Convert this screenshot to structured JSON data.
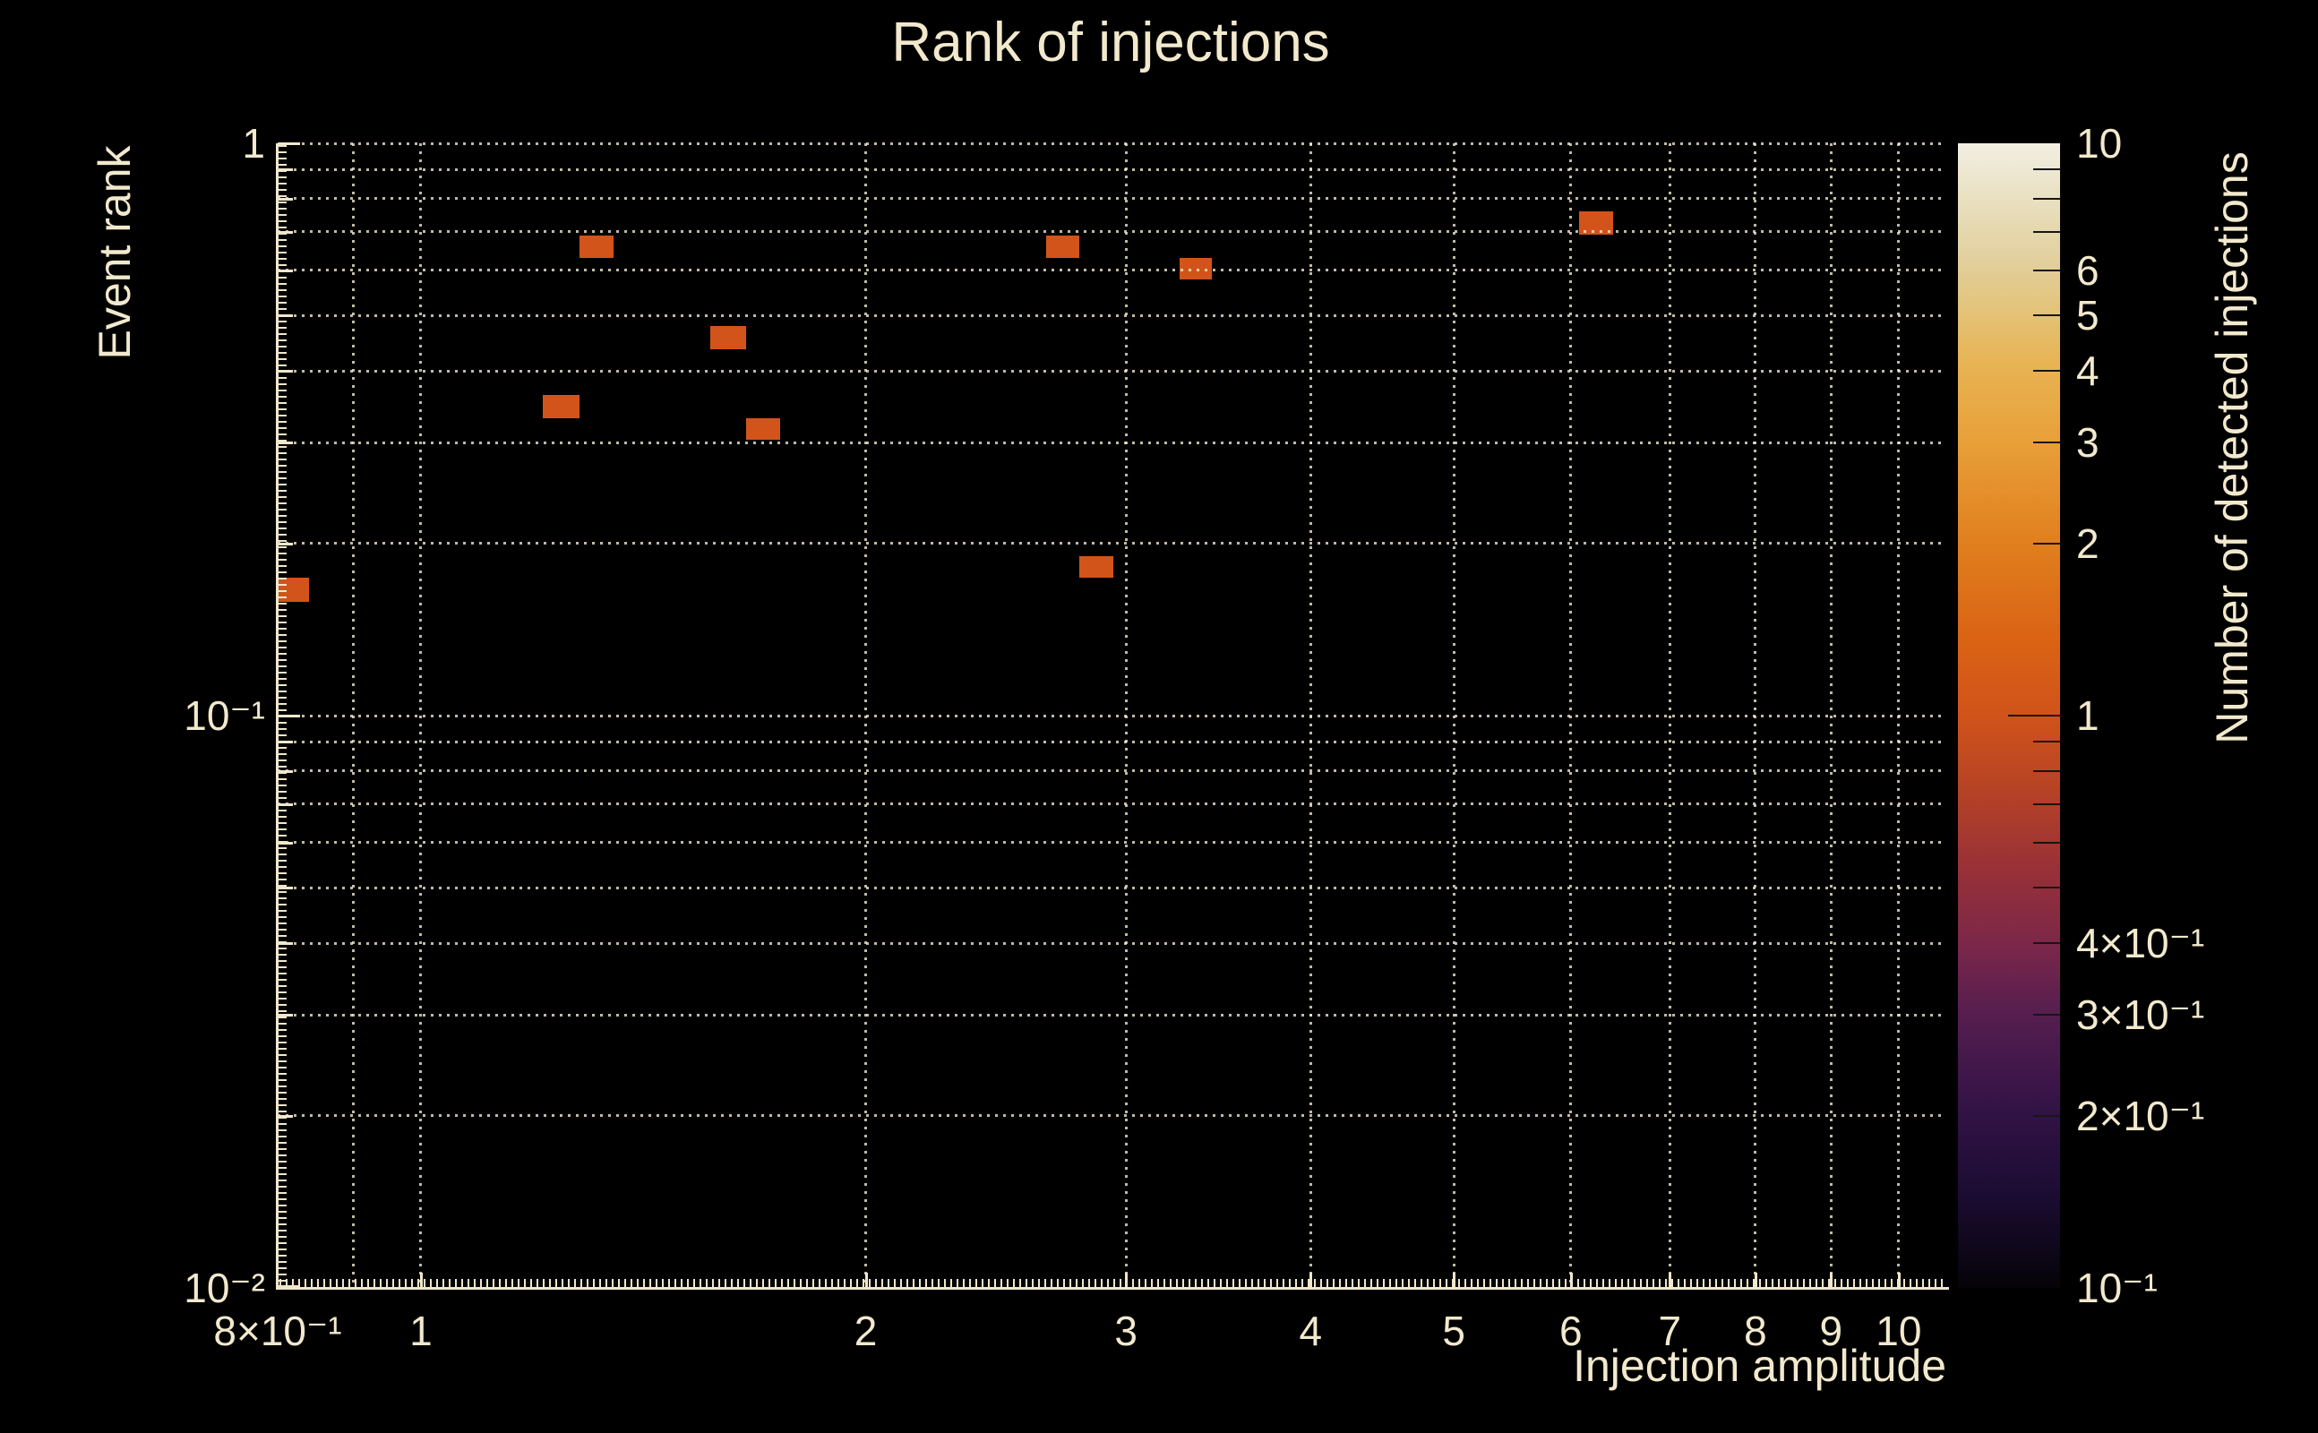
{
  "title": "Rank of injections",
  "colors": {
    "background": "#000000",
    "text": "#f2e9cd",
    "grid": "#f0e7cc",
    "spine": "#f0e7cc",
    "marker_count1": "#d2541a",
    "colorbar_tick": "#161616"
  },
  "chart_data": {
    "type": "heatmap",
    "title": "Rank of injections",
    "xlabel": "Injection amplitude",
    "ylabel": "Event rank",
    "colorbar_label": "Number of detected injections",
    "xscale": "log",
    "yscale": "log",
    "colorscale": "log",
    "xlim": [
      0.8,
      10.77
    ],
    "ylim": [
      0.01,
      1
    ],
    "colorlim": [
      0.1,
      10
    ],
    "grid": "dotted major+minor, both axes",
    "legend_position": "colorbar-right",
    "x_ticks": [
      {
        "value": 0.8,
        "label": "8×10⁻¹"
      },
      {
        "value": 1,
        "label": "1"
      },
      {
        "value": 2,
        "label": "2"
      },
      {
        "value": 3,
        "label": "3"
      },
      {
        "value": 4,
        "label": "4"
      },
      {
        "value": 5,
        "label": "5"
      },
      {
        "value": 6,
        "label": "6"
      },
      {
        "value": 7,
        "label": "7"
      },
      {
        "value": 8,
        "label": "8"
      },
      {
        "value": 9,
        "label": "9"
      },
      {
        "value": 10,
        "label": "10"
      }
    ],
    "x_minor_gridlines": [
      0.9,
      2,
      3,
      4,
      5,
      6,
      7,
      8,
      9
    ],
    "x_major_gridlines": [
      1,
      10
    ],
    "y_ticks": [
      {
        "value": 1,
        "label": "1"
      },
      {
        "value": 0.1,
        "label": "10⁻¹"
      },
      {
        "value": 0.01,
        "label": "10⁻²"
      }
    ],
    "y_minor_gridlines": [
      0.9,
      0.8,
      0.7,
      0.6,
      0.5,
      0.4,
      0.3,
      0.2,
      0.09,
      0.08,
      0.07,
      0.06,
      0.05,
      0.04,
      0.03,
      0.02
    ],
    "y_major_gridlines": [
      1,
      0.1
    ],
    "colorbar_ticks": [
      {
        "value": 10,
        "label": "10"
      },
      {
        "value": 6,
        "label": "6"
      },
      {
        "value": 5,
        "label": "5"
      },
      {
        "value": 4,
        "label": "4"
      },
      {
        "value": 3,
        "label": "3"
      },
      {
        "value": 2,
        "label": "2"
      },
      {
        "value": 1,
        "label": "1"
      },
      {
        "value": 0.4,
        "label": "4×10⁻¹"
      },
      {
        "value": 0.3,
        "label": "3×10⁻¹"
      },
      {
        "value": 0.2,
        "label": "2×10⁻¹"
      },
      {
        "value": 0.1,
        "label": "10⁻¹"
      }
    ],
    "colorbar_minor_ticks": [
      9,
      8,
      7,
      0.9,
      0.8,
      0.7,
      0.6,
      0.5
    ],
    "colormap": "inferno-like (black-purple-red-orange-cream)",
    "gradient_stops": [
      {
        "pos": 0.0,
        "color": "#050308"
      },
      {
        "pos": 0.08,
        "color": "#1b0c32"
      },
      {
        "pos": 0.16,
        "color": "#341347"
      },
      {
        "pos": 0.24,
        "color": "#561e4f"
      },
      {
        "pos": 0.3,
        "color": "#7b2749"
      },
      {
        "pos": 0.37,
        "color": "#9a3136"
      },
      {
        "pos": 0.44,
        "color": "#b84424"
      },
      {
        "pos": 0.5,
        "color": "#d0531a"
      },
      {
        "pos": 0.57,
        "color": "#da6414"
      },
      {
        "pos": 0.65,
        "color": "#e07f1e"
      },
      {
        "pos": 0.74,
        "color": "#e8a039"
      },
      {
        "pos": 0.81,
        "color": "#e7b455"
      },
      {
        "pos": 0.86,
        "color": "#e3c57e"
      },
      {
        "pos": 0.9,
        "color": "#e2d09f"
      },
      {
        "pos": 0.95,
        "color": "#e9e0c0"
      },
      {
        "pos": 1.0,
        "color": "#f2efe3"
      }
    ],
    "bins": [
      {
        "x": [
          0.8,
          0.84
        ],
        "y": [
          0.158,
          0.174
        ],
        "count": 1
      },
      {
        "x": [
          1.21,
          1.28
        ],
        "y": [
          0.331,
          0.363
        ],
        "count": 1
      },
      {
        "x": [
          1.28,
          1.35
        ],
        "y": [
          0.631,
          0.69
        ],
        "count": 1
      },
      {
        "x": [
          1.57,
          1.66
        ],
        "y": [
          0.437,
          0.479
        ],
        "count": 1
      },
      {
        "x": [
          1.66,
          1.75
        ],
        "y": [
          0.303,
          0.331
        ],
        "count": 1
      },
      {
        "x": [
          2.65,
          2.79
        ],
        "y": [
          0.631,
          0.69
        ],
        "count": 1
      },
      {
        "x": [
          2.79,
          2.94
        ],
        "y": [
          0.174,
          0.19
        ],
        "count": 1
      },
      {
        "x": [
          3.26,
          3.43
        ],
        "y": [
          0.578,
          0.631
        ],
        "count": 1
      },
      {
        "x": [
          6.08,
          6.41
        ],
        "y": [
          0.693,
          0.76
        ],
        "count": 1
      }
    ]
  }
}
